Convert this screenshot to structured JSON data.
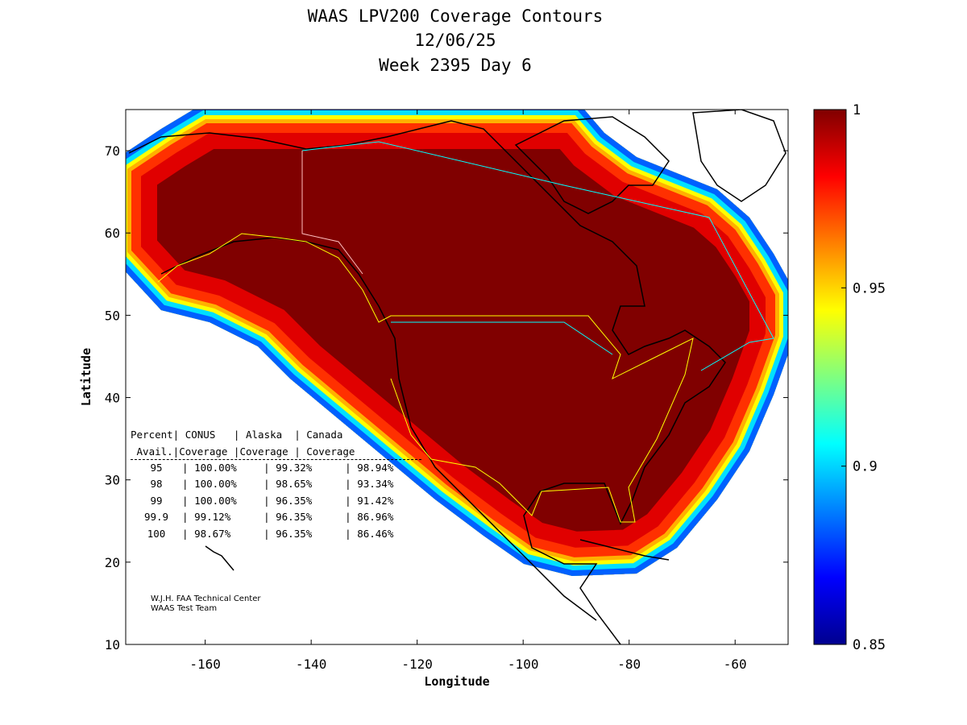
{
  "chart_data": {
    "type": "heatmap",
    "title": [
      "WAAS LPV200 Coverage Contours",
      "12/06/25",
      "Week 2395 Day 6"
    ],
    "xlabel": "Longitude",
    "ylabel": "Latitude",
    "xlim": [
      -175,
      -50
    ],
    "ylim": [
      10,
      75
    ],
    "xticks": [
      -160,
      -140,
      -120,
      -100,
      -80,
      -60
    ],
    "yticks": [
      10,
      20,
      30,
      40,
      50,
      60,
      70
    ],
    "colorbar": {
      "range": [
        0.85,
        1
      ],
      "ticks": [
        0.85,
        0.9,
        0.95,
        1
      ],
      "colormap": "jet"
    },
    "table": {
      "header1": "Percent| CONUS   | Alaska  | Canada",
      "header2": " Avail.|Coverage |Coverage | Coverage",
      "rows": [
        {
          "avail": "95",
          "conus": "100.00%",
          "alaska": "99.32%",
          "canada": "98.94%"
        },
        {
          "avail": "98",
          "conus": "100.00%",
          "alaska": "98.65%",
          "canada": "93.34%"
        },
        {
          "avail": "99",
          "conus": "100.00%",
          "alaska": "96.35%",
          "canada": "91.42%"
        },
        {
          "avail": "99.9",
          "conus": "99.12%",
          "alaska": "96.35%",
          "canada": "86.96%"
        },
        {
          "avail": "100",
          "conus": "98.67%",
          "alaska": "96.35%",
          "canada": "86.46%"
        }
      ]
    },
    "credit": [
      "W.J.H. FAA Technical Center",
      "WAAS Test Team"
    ]
  }
}
